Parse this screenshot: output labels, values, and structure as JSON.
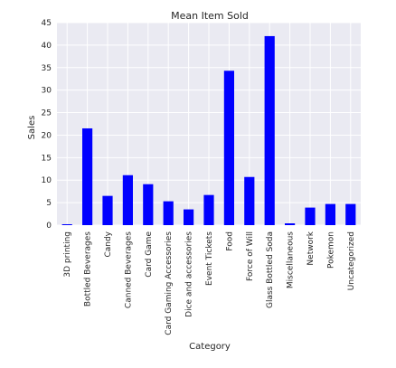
{
  "chart_data": {
    "type": "bar",
    "title": "Mean Item Sold",
    "xlabel": "Category",
    "ylabel": "Sales",
    "ylim": [
      0,
      45
    ],
    "yticks": [
      0,
      5,
      10,
      15,
      20,
      25,
      30,
      35,
      40,
      45
    ],
    "grid": true,
    "legend": "none",
    "categories": [
      "3D printing",
      "Bottled Beverages",
      "Candy",
      "Canned Beverages",
      "Card Game",
      "Card Gaming Accessories",
      "Dice and accessories",
      "Event Tickets",
      "Food",
      "Force of Will",
      "Glass Bottled Soda",
      "Miscellaneous",
      "Network",
      "Pokemon",
      "Uncategorized"
    ],
    "values": [
      0.2,
      21.5,
      6.5,
      11.1,
      9.1,
      5.3,
      3.5,
      6.7,
      34.3,
      10.7,
      42.0,
      0.4,
      3.9,
      4.7,
      4.7
    ],
    "colors": {
      "bar": "#0000ff",
      "plot_background": "#eaeaf2",
      "grid": "#ffffff",
      "text": "#262626"
    }
  }
}
